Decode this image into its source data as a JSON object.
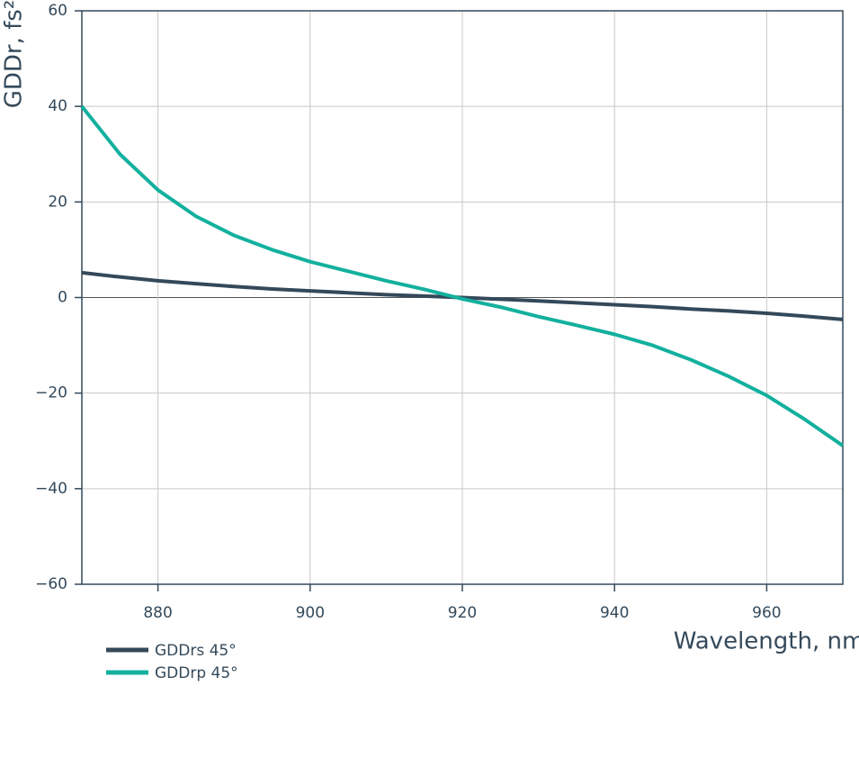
{
  "chart_data": {
    "type": "line",
    "xlabel": "Wavelength, nm",
    "ylabel": "GDDr, fs²",
    "x": [
      870,
      875,
      880,
      885,
      890,
      895,
      900,
      905,
      910,
      915,
      920,
      925,
      930,
      935,
      940,
      945,
      950,
      955,
      960,
      965,
      970
    ],
    "series": [
      {
        "name": "GDDrs 45°",
        "color": "#34495a",
        "values": [
          5.2,
          4.3,
          3.5,
          2.9,
          2.3,
          1.8,
          1.4,
          1.0,
          0.6,
          0.3,
          0,
          -0.35,
          -0.7,
          -1.1,
          -1.5,
          -1.9,
          -2.4,
          -2.8,
          -3.3,
          -3.9,
          -4.6
        ]
      },
      {
        "name": "GDDrp 45°",
        "color": "#13b09e",
        "values": [
          40,
          30,
          22.5,
          17,
          13,
          10,
          7.5,
          5.5,
          3.5,
          1.7,
          -0.3,
          -2,
          -4,
          -5.8,
          -7.7,
          -10,
          -13,
          -16.5,
          -20.5,
          -25.5,
          -31
        ]
      }
    ],
    "xlim": [
      870,
      970
    ],
    "xticks": [
      880,
      900,
      920,
      940,
      960
    ],
    "ylim": [
      -60,
      60
    ],
    "yticks": [
      {
        "value": -60,
        "label": "−60"
      },
      {
        "value": -40,
        "label": "−40"
      },
      {
        "value": -20,
        "label": "−20"
      },
      0,
      20,
      40,
      60
    ],
    "grid": true
  }
}
